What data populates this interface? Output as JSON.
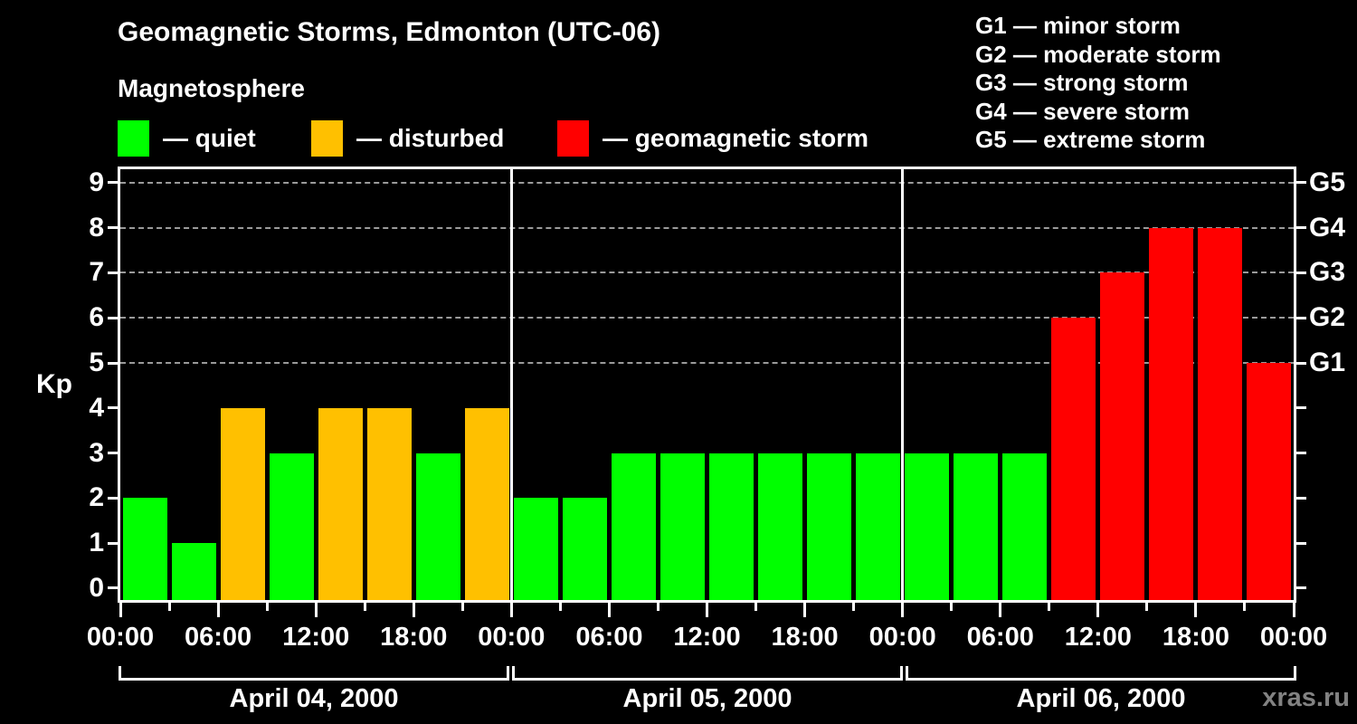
{
  "title": "Geomagnetic Storms, Edmonton (UTC-06)",
  "legend": {
    "heading": "Magnetosphere",
    "items": [
      {
        "label": "— quiet",
        "color": "#00ff00"
      },
      {
        "label": "— disturbed",
        "color": "#ffc000"
      },
      {
        "label": "— geomagnetic storm",
        "color": "#ff0000"
      }
    ]
  },
  "storm_scale_legend": [
    "G1 — minor storm",
    "G2 — moderate storm",
    "G3 — strong storm",
    "G4 — severe storm",
    "G5 — extreme storm"
  ],
  "watermark": "xras.ru",
  "colors": {
    "background": "#000000",
    "axis": "#ffffff",
    "grid": "#9a9a9a",
    "quiet": "#00ff00",
    "disturbed": "#ffc000",
    "storm": "#ff0000",
    "watermark": "#828282"
  },
  "chart_data": {
    "type": "bar",
    "title": "Geomagnetic Storms, Edmonton (UTC-06)",
    "ylabel": "Kp",
    "ylim": [
      0,
      9
    ],
    "yticks": [
      0,
      1,
      2,
      3,
      4,
      5,
      6,
      7,
      8,
      9
    ],
    "grid_levels": [
      5,
      6,
      7,
      8,
      9
    ],
    "right_axis": [
      {
        "kp": 5,
        "label": "G1"
      },
      {
        "kp": 6,
        "label": "G2"
      },
      {
        "kp": 7,
        "label": "G3"
      },
      {
        "kp": 8,
        "label": "G4"
      },
      {
        "kp": 9,
        "label": "G5"
      }
    ],
    "bar_interval_hours": 3,
    "color_rules": {
      "quiet_max_kp": 3,
      "disturbed_max_kp": 4
    },
    "x_tick_labels": [
      "00:00",
      "06:00",
      "12:00",
      "18:00",
      "00:00",
      "06:00",
      "12:00",
      "18:00",
      "00:00",
      "06:00",
      "12:00",
      "18:00",
      "00:00"
    ],
    "days": [
      {
        "date": "April 04, 2000",
        "values": [
          2,
          1,
          4,
          3,
          4,
          4,
          3,
          4
        ]
      },
      {
        "date": "April 05, 2000",
        "values": [
          2,
          2,
          3,
          3,
          3,
          3,
          3,
          3
        ]
      },
      {
        "date": "April 06, 2000",
        "values": [
          3,
          3,
          3,
          6,
          7,
          8,
          8,
          5
        ]
      }
    ]
  }
}
